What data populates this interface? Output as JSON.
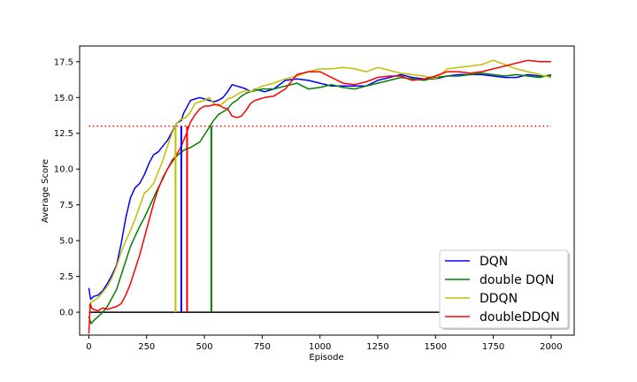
{
  "chart_data": {
    "type": "line",
    "xlabel": "Episode",
    "ylabel": "Average Score",
    "xlim": [
      -40,
      2100
    ],
    "ylim": [
      -1.6,
      18.6
    ],
    "xticks": [
      0,
      250,
      500,
      750,
      1000,
      1250,
      1500,
      1750,
      2000
    ],
    "xtick_labels": [
      "0",
      "250",
      "500",
      "750",
      "1000",
      "1250",
      "1500",
      "1750",
      "2000"
    ],
    "yticks": [
      0.0,
      2.5,
      5.0,
      7.5,
      10.0,
      12.5,
      15.0,
      17.5
    ],
    "ytick_labels": [
      "0.0",
      "2.5",
      "5.0",
      "7.5",
      "10.0",
      "12.5",
      "15.0",
      "17.5"
    ],
    "target_line": {
      "y": 13,
      "x": [
        0,
        2000
      ],
      "color": "#ff0000",
      "style": "dotted"
    },
    "baseline_line": {
      "y": 0,
      "x": [
        0,
        2000
      ],
      "color": "#000000"
    },
    "legend": {
      "position": "bottom-right"
    },
    "series": [
      {
        "name": "DQN",
        "color": "#0000ff",
        "solved_episode": 400,
        "points": [
          [
            0,
            1.7
          ],
          [
            8,
            0.9
          ],
          [
            20,
            1.1
          ],
          [
            40,
            1.2
          ],
          [
            60,
            1.5
          ],
          [
            80,
            2.0
          ],
          [
            100,
            2.6
          ],
          [
            120,
            3.3
          ],
          [
            140,
            4.8
          ],
          [
            160,
            6.6
          ],
          [
            180,
            8.0
          ],
          [
            200,
            8.7
          ],
          [
            220,
            9.0
          ],
          [
            240,
            9.6
          ],
          [
            260,
            10.4
          ],
          [
            280,
            11.0
          ],
          [
            300,
            11.2
          ],
          [
            320,
            11.6
          ],
          [
            340,
            12.0
          ],
          [
            360,
            12.6
          ],
          [
            380,
            13.2
          ],
          [
            400,
            13.4
          ],
          [
            410,
            13.9
          ],
          [
            420,
            14.2
          ],
          [
            440,
            14.8
          ],
          [
            460,
            14.9
          ],
          [
            480,
            15.0
          ],
          [
            500,
            14.9
          ],
          [
            520,
            14.8
          ],
          [
            540,
            14.7
          ],
          [
            560,
            14.8
          ],
          [
            580,
            15.0
          ],
          [
            600,
            15.4
          ],
          [
            620,
            15.9
          ],
          [
            640,
            15.8
          ],
          [
            660,
            15.7
          ],
          [
            680,
            15.6
          ],
          [
            700,
            15.4
          ],
          [
            720,
            15.6
          ],
          [
            760,
            15.4
          ],
          [
            800,
            15.6
          ],
          [
            850,
            16.2
          ],
          [
            900,
            16.3
          ],
          [
            950,
            16.2
          ],
          [
            1000,
            16.0
          ],
          [
            1050,
            15.8
          ],
          [
            1100,
            15.8
          ],
          [
            1150,
            15.8
          ],
          [
            1200,
            15.8
          ],
          [
            1250,
            16.2
          ],
          [
            1300,
            16.4
          ],
          [
            1350,
            16.6
          ],
          [
            1400,
            16.4
          ],
          [
            1450,
            16.3
          ],
          [
            1500,
            16.3
          ],
          [
            1550,
            16.5
          ],
          [
            1600,
            16.6
          ],
          [
            1650,
            16.6
          ],
          [
            1700,
            16.6
          ],
          [
            1750,
            16.5
          ],
          [
            1800,
            16.4
          ],
          [
            1850,
            16.4
          ],
          [
            1900,
            16.6
          ],
          [
            1950,
            16.5
          ],
          [
            2000,
            16.5
          ]
        ]
      },
      {
        "name": "double DQN",
        "color": "#008000",
        "solved_episode": 530,
        "points": [
          [
            0,
            -0.3
          ],
          [
            10,
            -0.8
          ],
          [
            20,
            -0.6
          ],
          [
            40,
            -0.3
          ],
          [
            60,
            0.0
          ],
          [
            80,
            0.4
          ],
          [
            100,
            1.0
          ],
          [
            120,
            1.6
          ],
          [
            140,
            2.6
          ],
          [
            160,
            3.6
          ],
          [
            180,
            4.6
          ],
          [
            200,
            5.3
          ],
          [
            220,
            6.0
          ],
          [
            240,
            6.6
          ],
          [
            260,
            7.3
          ],
          [
            280,
            8.0
          ],
          [
            300,
            8.7
          ],
          [
            320,
            9.3
          ],
          [
            340,
            10.0
          ],
          [
            360,
            10.5
          ],
          [
            380,
            10.9
          ],
          [
            400,
            11.2
          ],
          [
            420,
            11.4
          ],
          [
            440,
            11.5
          ],
          [
            460,
            11.7
          ],
          [
            480,
            11.9
          ],
          [
            500,
            12.4
          ],
          [
            520,
            12.9
          ],
          [
            540,
            13.4
          ],
          [
            560,
            13.8
          ],
          [
            580,
            14.0
          ],
          [
            600,
            14.2
          ],
          [
            620,
            14.6
          ],
          [
            640,
            14.8
          ],
          [
            660,
            15.1
          ],
          [
            680,
            15.3
          ],
          [
            700,
            15.4
          ],
          [
            750,
            15.6
          ],
          [
            800,
            15.6
          ],
          [
            850,
            15.8
          ],
          [
            900,
            16.0
          ],
          [
            950,
            15.6
          ],
          [
            1000,
            15.7
          ],
          [
            1050,
            15.9
          ],
          [
            1100,
            15.7
          ],
          [
            1150,
            15.6
          ],
          [
            1200,
            15.8
          ],
          [
            1250,
            16.0
          ],
          [
            1300,
            16.2
          ],
          [
            1350,
            16.4
          ],
          [
            1400,
            16.3
          ],
          [
            1450,
            16.2
          ],
          [
            1500,
            16.4
          ],
          [
            1550,
            16.5
          ],
          [
            1600,
            16.5
          ],
          [
            1650,
            16.6
          ],
          [
            1700,
            16.7
          ],
          [
            1750,
            16.6
          ],
          [
            1800,
            16.5
          ],
          [
            1850,
            16.6
          ],
          [
            1900,
            16.5
          ],
          [
            1950,
            16.4
          ],
          [
            2000,
            16.6
          ]
        ]
      },
      {
        "name": "DDQN",
        "color": "#bfbf00",
        "solved_episode": 375,
        "points": [
          [
            0,
            0.4
          ],
          [
            10,
            0.7
          ],
          [
            20,
            0.8
          ],
          [
            40,
            1.0
          ],
          [
            60,
            1.4
          ],
          [
            80,
            1.8
          ],
          [
            100,
            2.4
          ],
          [
            120,
            3.2
          ],
          [
            140,
            4.2
          ],
          [
            160,
            5.0
          ],
          [
            180,
            5.7
          ],
          [
            200,
            6.5
          ],
          [
            220,
            7.4
          ],
          [
            240,
            8.3
          ],
          [
            260,
            8.6
          ],
          [
            280,
            9.0
          ],
          [
            300,
            9.8
          ],
          [
            320,
            10.6
          ],
          [
            340,
            11.6
          ],
          [
            360,
            12.5
          ],
          [
            380,
            13.2
          ],
          [
            400,
            13.5
          ],
          [
            420,
            13.6
          ],
          [
            440,
            14.0
          ],
          [
            460,
            14.6
          ],
          [
            480,
            14.7
          ],
          [
            500,
            14.8
          ],
          [
            520,
            15.0
          ],
          [
            540,
            14.6
          ],
          [
            560,
            14.4
          ],
          [
            580,
            14.6
          ],
          [
            600,
            14.9
          ],
          [
            620,
            15.0
          ],
          [
            650,
            15.3
          ],
          [
            680,
            15.5
          ],
          [
            700,
            15.4
          ],
          [
            750,
            15.8
          ],
          [
            800,
            16.0
          ],
          [
            850,
            16.3
          ],
          [
            900,
            16.5
          ],
          [
            950,
            16.8
          ],
          [
            1000,
            17.0
          ],
          [
            1050,
            17.0
          ],
          [
            1100,
            17.1
          ],
          [
            1150,
            17.0
          ],
          [
            1200,
            16.8
          ],
          [
            1250,
            17.1
          ],
          [
            1300,
            16.9
          ],
          [
            1350,
            16.7
          ],
          [
            1400,
            16.6
          ],
          [
            1450,
            16.5
          ],
          [
            1500,
            16.3
          ],
          [
            1550,
            17.0
          ],
          [
            1600,
            17.1
          ],
          [
            1650,
            17.2
          ],
          [
            1700,
            17.3
          ],
          [
            1750,
            17.6
          ],
          [
            1800,
            17.3
          ],
          [
            1850,
            17.0
          ],
          [
            1900,
            16.8
          ],
          [
            1950,
            16.6
          ],
          [
            2000,
            16.4
          ]
        ]
      },
      {
        "name": "doubleDDQN",
        "color": "#ff0000",
        "solved_episode": 425,
        "points": [
          [
            0,
            -1.5
          ],
          [
            6,
            0.6
          ],
          [
            12,
            0.3
          ],
          [
            20,
            0.2
          ],
          [
            40,
            0.1
          ],
          [
            60,
            0.3
          ],
          [
            80,
            0.2
          ],
          [
            100,
            0.3
          ],
          [
            120,
            0.4
          ],
          [
            140,
            0.6
          ],
          [
            160,
            1.2
          ],
          [
            180,
            2.0
          ],
          [
            200,
            3.0
          ],
          [
            220,
            4.0
          ],
          [
            240,
            5.2
          ],
          [
            260,
            6.4
          ],
          [
            280,
            7.6
          ],
          [
            300,
            8.6
          ],
          [
            320,
            9.4
          ],
          [
            340,
            10.0
          ],
          [
            360,
            10.6
          ],
          [
            380,
            11.0
          ],
          [
            400,
            11.6
          ],
          [
            420,
            12.4
          ],
          [
            440,
            13.3
          ],
          [
            460,
            13.8
          ],
          [
            480,
            14.2
          ],
          [
            500,
            14.4
          ],
          [
            520,
            14.4
          ],
          [
            540,
            14.5
          ],
          [
            560,
            14.5
          ],
          [
            580,
            14.3
          ],
          [
            600,
            14.2
          ],
          [
            620,
            13.7
          ],
          [
            640,
            13.6
          ],
          [
            660,
            13.7
          ],
          [
            680,
            14.1
          ],
          [
            700,
            14.6
          ],
          [
            720,
            14.8
          ],
          [
            760,
            15.0
          ],
          [
            800,
            15.1
          ],
          [
            850,
            15.6
          ],
          [
            900,
            16.6
          ],
          [
            950,
            16.8
          ],
          [
            1000,
            16.8
          ],
          [
            1050,
            16.4
          ],
          [
            1100,
            16.0
          ],
          [
            1150,
            15.9
          ],
          [
            1200,
            16.1
          ],
          [
            1250,
            16.4
          ],
          [
            1300,
            16.5
          ],
          [
            1350,
            16.5
          ],
          [
            1400,
            16.2
          ],
          [
            1450,
            16.3
          ],
          [
            1500,
            16.5
          ],
          [
            1550,
            16.8
          ],
          [
            1600,
            16.8
          ],
          [
            1650,
            16.7
          ],
          [
            1700,
            16.8
          ],
          [
            1750,
            17.0
          ],
          [
            1800,
            17.2
          ],
          [
            1850,
            17.4
          ],
          [
            1900,
            17.6
          ],
          [
            1950,
            17.5
          ],
          [
            2000,
            17.5
          ]
        ]
      }
    ]
  }
}
